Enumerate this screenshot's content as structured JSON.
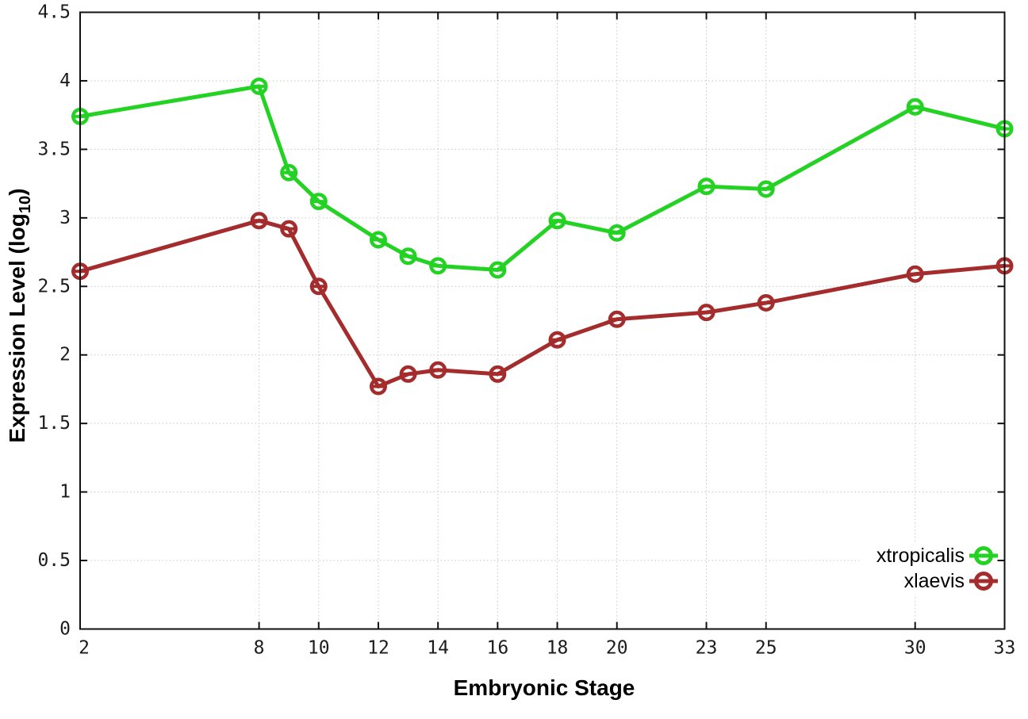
{
  "chart_data": {
    "type": "line",
    "title": "",
    "xlabel": "Embryonic Stage",
    "ylabel": {
      "prefix": "Expression Level (log",
      "sub": "10",
      "suffix": ")"
    },
    "xlim": [
      2,
      33
    ],
    "ylim": [
      0,
      4.5
    ],
    "grid": true,
    "legend_position": "inside bottom-right",
    "x": [
      2,
      8,
      9,
      10,
      12,
      13,
      14,
      16,
      18,
      20,
      23,
      25,
      30,
      33
    ],
    "xticks": {
      "values": [
        2,
        8,
        10,
        12,
        14,
        16,
        18,
        20,
        23,
        25,
        30,
        33
      ],
      "labels": [
        "2",
        "8",
        "10",
        "12",
        "14",
        "16",
        "18",
        "20",
        "23",
        "25",
        "30",
        "33"
      ]
    },
    "yticks": {
      "values": [
        0,
        0.5,
        1,
        1.5,
        2,
        2.5,
        3,
        3.5,
        4,
        4.5
      ],
      "labels": [
        "0",
        "0.5",
        "1",
        "1.5",
        "2",
        "2.5",
        "3",
        "3.5",
        "4",
        "4.5"
      ]
    },
    "series": [
      {
        "name": "xtropicalis",
        "color": "#24d224",
        "values": [
          3.74,
          3.96,
          3.33,
          3.12,
          2.84,
          2.72,
          2.65,
          2.62,
          2.98,
          2.89,
          3.23,
          3.21,
          3.81,
          3.65
        ]
      },
      {
        "name": "xlaevis",
        "color": "#a42c2c",
        "values": [
          2.61,
          2.98,
          2.92,
          2.5,
          1.77,
          1.86,
          1.89,
          1.86,
          2.11,
          2.26,
          2.31,
          2.38,
          2.59,
          2.65
        ]
      }
    ]
  }
}
